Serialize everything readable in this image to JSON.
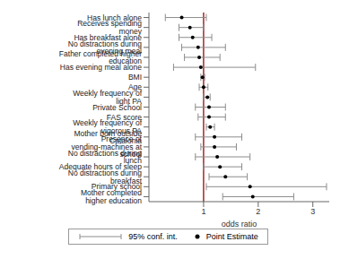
{
  "chart_data": {
    "type": "forest",
    "x_label": "odds ratio",
    "categories": [
      "Mother completed higher education",
      "Primary school",
      "No distractions during breakfast",
      "Adequate hours of sleep",
      "No distractions during lunch",
      "Presence of vending-machines at school",
      "Mother born outside Catalonia",
      "Weekly frequency of vigorous PA",
      "FAS score",
      "Private School",
      "Weekly frequency of light PA",
      "Age",
      "BMI",
      "Has evening meal alone",
      "Father completed higher education",
      "No distractions during evening meal",
      "Has breakfast alone",
      "Receives spending money",
      "Has lunch alone"
    ],
    "series": [
      {
        "name": "95% conf. int.",
        "color": "#8c8c8c",
        "lower": [
          1.35,
          1.05,
          1.1,
          1.0,
          0.85,
          0.95,
          0.85,
          1.05,
          0.9,
          0.85,
          1.0,
          0.92,
          0.95,
          0.45,
          0.65,
          0.6,
          0.55,
          0.55,
          0.3
        ],
        "upper": [
          2.65,
          3.25,
          1.8,
          1.7,
          1.85,
          1.6,
          1.7,
          1.2,
          1.4,
          1.4,
          1.12,
          1.08,
          1.02,
          1.95,
          1.3,
          1.4,
          1.15,
          1.0,
          1.05
        ]
      },
      {
        "name": "Point Estimate",
        "color": "#000000",
        "values": [
          1.9,
          1.85,
          1.4,
          1.3,
          1.25,
          1.2,
          1.2,
          1.12,
          1.1,
          1.1,
          1.07,
          1.0,
          0.98,
          0.95,
          0.92,
          0.9,
          0.8,
          0.75,
          0.6
        ]
      }
    ],
    "reference_line": 1,
    "reference_color": "#a3262a",
    "xlim": [
      0,
      3.3
    ],
    "xticks": [
      1,
      2,
      3
    ],
    "grid": false,
    "legend": "bottom"
  }
}
